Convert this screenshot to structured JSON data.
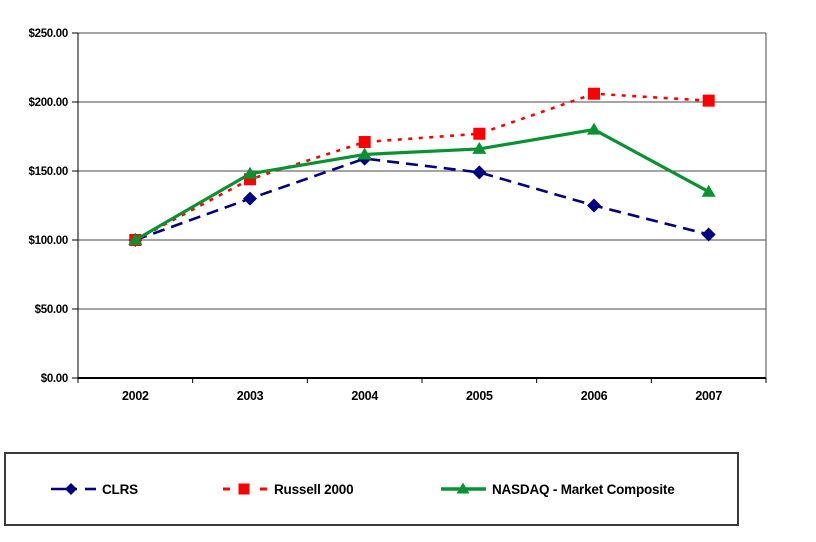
{
  "chart_data": {
    "type": "line",
    "title": "",
    "xlabel": "",
    "ylabel": "",
    "categories": [
      "2002",
      "2003",
      "2004",
      "2005",
      "2006",
      "2007"
    ],
    "series": [
      {
        "name": "CLRS",
        "color": "#000080",
        "marker": "diamond",
        "line_style": "dashed",
        "values": [
          100,
          130,
          159,
          149,
          125,
          104
        ]
      },
      {
        "name": "Russell 2000",
        "color": "#ff0000",
        "marker": "square",
        "line_style": "dotted",
        "values": [
          100,
          144,
          171,
          177,
          206,
          201
        ]
      },
      {
        "name": "NASDAQ - Market Composite",
        "color": "#089232",
        "marker": "triangle",
        "line_style": "solid",
        "values": [
          100,
          148,
          162,
          166,
          180,
          135
        ]
      }
    ],
    "ylim": [
      0,
      250
    ],
    "ytick_step": 50,
    "ytick_labels_top_to_bottom": [
      "$250.00",
      "$200.00",
      "$150.00",
      "$100.00",
      "$50.00",
      "$0.00"
    ],
    "grid": true,
    "legend_position": "bottom"
  },
  "colors": {
    "background": "#ffffff",
    "gridline": "#4a4a4a",
    "axis": "#000000",
    "legend_border": "#3b3b3b",
    "clrs_navy": "#000080",
    "russell_red": "#ff0000",
    "nasdaq_green": "#089232"
  }
}
